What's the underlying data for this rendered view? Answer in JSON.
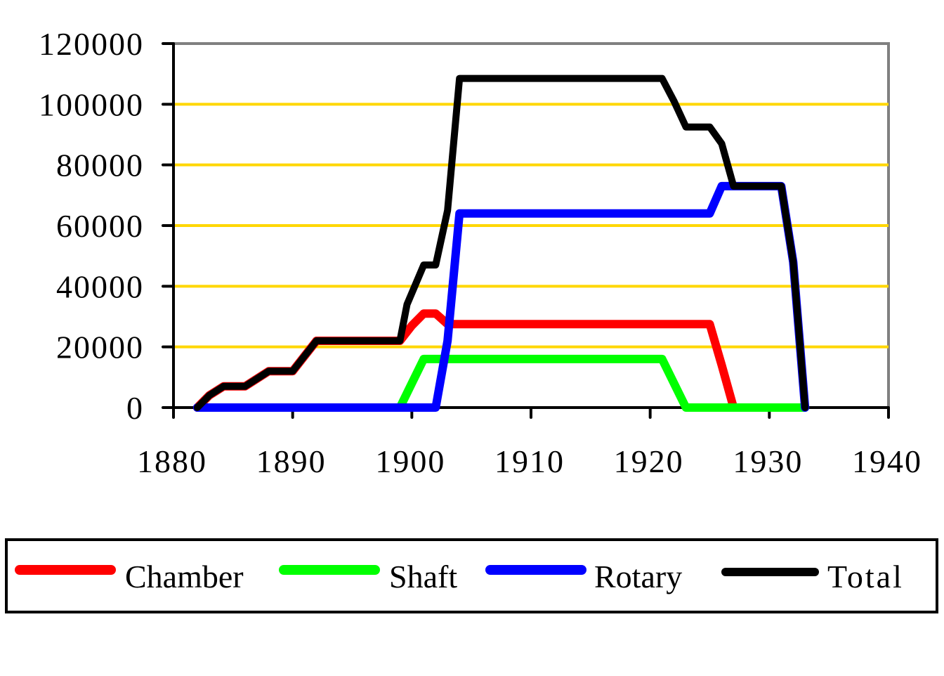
{
  "chart_data": {
    "type": "line",
    "title": "",
    "xlabel": "",
    "ylabel": "",
    "xlim": [
      1880,
      1940
    ],
    "ylim": [
      0,
      120000
    ],
    "x_ticks": [
      "1880",
      "1890",
      "1900",
      "1910",
      "1920",
      "1930",
      "1940"
    ],
    "y_ticks": [
      "0",
      "20000",
      "40000",
      "60000",
      "80000",
      "100000",
      "120000"
    ],
    "grid": {
      "horizontal": true,
      "vertical": false,
      "color": "#FFD700"
    },
    "legend_position": "bottom",
    "series": [
      {
        "name": "Chamber",
        "color": "#FF0000",
        "points": [
          [
            1882,
            0
          ],
          [
            1883,
            4000
          ],
          [
            1884.2,
            7000
          ],
          [
            1886,
            7000
          ],
          [
            1888,
            12000
          ],
          [
            1890,
            12000
          ],
          [
            1891,
            17000
          ],
          [
            1892,
            22000
          ],
          [
            1899,
            22000
          ],
          [
            1900,
            27000
          ],
          [
            1901,
            31000
          ],
          [
            1902,
            31000
          ],
          [
            1903,
            27500
          ],
          [
            1925,
            27500
          ],
          [
            1926,
            14000
          ],
          [
            1927,
            0
          ]
        ]
      },
      {
        "name": "Shaft",
        "color": "#00FF00",
        "points": [
          [
            1899,
            0
          ],
          [
            1900,
            8000
          ],
          [
            1901,
            16000
          ],
          [
            1921,
            16000
          ],
          [
            1922,
            8000
          ],
          [
            1923,
            0
          ],
          [
            1933,
            0
          ]
        ]
      },
      {
        "name": "Rotary",
        "color": "#0000FF",
        "points": [
          [
            1882,
            0
          ],
          [
            1902,
            0
          ],
          [
            1903,
            22000
          ],
          [
            1904,
            64000
          ],
          [
            1925,
            64000
          ],
          [
            1926,
            73000
          ],
          [
            1931,
            73000
          ],
          [
            1932,
            48000
          ],
          [
            1933,
            0
          ]
        ]
      },
      {
        "name": "Total",
        "color": "#000000",
        "points": [
          [
            1882,
            0
          ],
          [
            1883,
            4000
          ],
          [
            1884.2,
            7000
          ],
          [
            1886,
            7000
          ],
          [
            1888,
            12000
          ],
          [
            1890,
            12000
          ],
          [
            1891,
            17000
          ],
          [
            1892,
            22000
          ],
          [
            1899,
            22000
          ],
          [
            1899.6,
            34000
          ],
          [
            1901,
            47000
          ],
          [
            1902,
            47000
          ],
          [
            1903,
            65000
          ],
          [
            1904,
            108500
          ],
          [
            1921,
            108500
          ],
          [
            1922,
            101000
          ],
          [
            1923,
            92500
          ],
          [
            1925,
            92500
          ],
          [
            1926,
            87000
          ],
          [
            1927,
            73000
          ],
          [
            1931,
            73000
          ],
          [
            1932,
            48000
          ],
          [
            1933,
            0
          ]
        ]
      }
    ]
  },
  "legend": {
    "items": [
      {
        "label": "Chamber",
        "color": "#FF0000"
      },
      {
        "label": "Shaft",
        "color": "#00FF00"
      },
      {
        "label": "Rotary",
        "color": "#0000FF"
      },
      {
        "label": "Total",
        "color": "#000000"
      }
    ]
  }
}
